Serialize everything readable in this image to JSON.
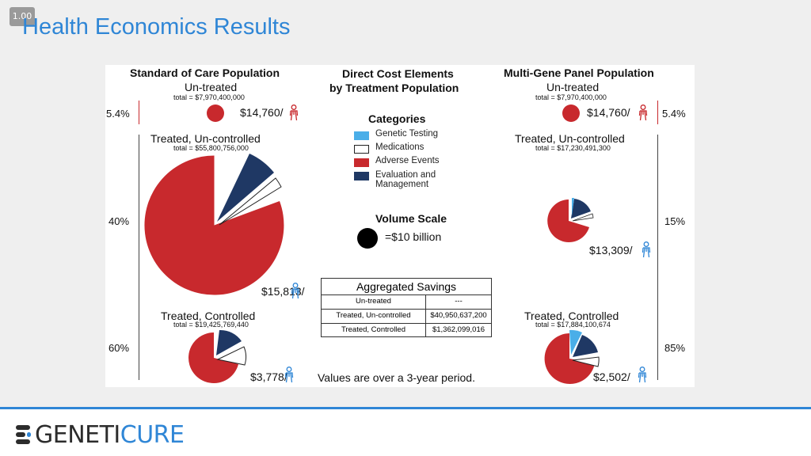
{
  "slide": {
    "badge": "1.00",
    "title": "Health Economics Results"
  },
  "colors": {
    "genetic_testing": "#4aaee8",
    "medications": "#ffffff",
    "adverse_events": "#c8292d",
    "evaluation_management": "#1f3864",
    "title_blue": "#2f86d6"
  },
  "left": {
    "header": "Standard of Care Population",
    "untreated": {
      "label": "Un-treated",
      "total": "total = $7,970,400,000",
      "percent": "5.4%",
      "cost": "$14,760/"
    },
    "uncontrolled": {
      "label": "Treated, Un-controlled",
      "total": "total = $55,800,756,000",
      "percent": "40%",
      "cost": "$15,813/"
    },
    "controlled": {
      "label": "Treated, Controlled",
      "total": "total = $19,425,769,440",
      "percent": "60%",
      "cost": "$3,778/"
    }
  },
  "center": {
    "header_line1": "Direct Cost Elements",
    "header_line2": "by Treatment Population",
    "categories_title": "Categories",
    "categories": [
      {
        "label": "Genetic Testing",
        "color_key": "genetic_testing"
      },
      {
        "label": "Medications",
        "color_key": "medications"
      },
      {
        "label": "Adverse Events",
        "color_key": "adverse_events"
      },
      {
        "label_line1": "Evaluation and",
        "label_line2": "Management",
        "color_key": "evaluation_management"
      }
    ],
    "volume_scale_title": "Volume Scale",
    "volume_scale_value": "=$10 billion",
    "savings": {
      "title": "Aggregated Savings",
      "rows": [
        {
          "name": "Un-treated",
          "value": "---"
        },
        {
          "name": "Treated, Un-controlled",
          "value": "$40,950,637,200"
        },
        {
          "name": "Treated, Controlled",
          "value": "$1,362,099,016"
        }
      ]
    },
    "note": "Values are over a 3-year period."
  },
  "right": {
    "header": "Multi-Gene Panel Population",
    "untreated": {
      "label": "Un-treated",
      "total": "total = $7,970,400,000",
      "percent": "5.4%",
      "cost": "$14,760/"
    },
    "uncontrolled": {
      "label": "Treated, Un-controlled",
      "total": "total = $17,230,491,300",
      "percent": "15%",
      "cost": "$13,309/"
    },
    "controlled": {
      "label": "Treated, Controlled",
      "total": "total = $17,884,100,674",
      "percent": "85%",
      "cost": "$2,502/"
    }
  },
  "footer": {
    "logo_part1": "GENETI",
    "logo_part2": "CURE"
  }
}
